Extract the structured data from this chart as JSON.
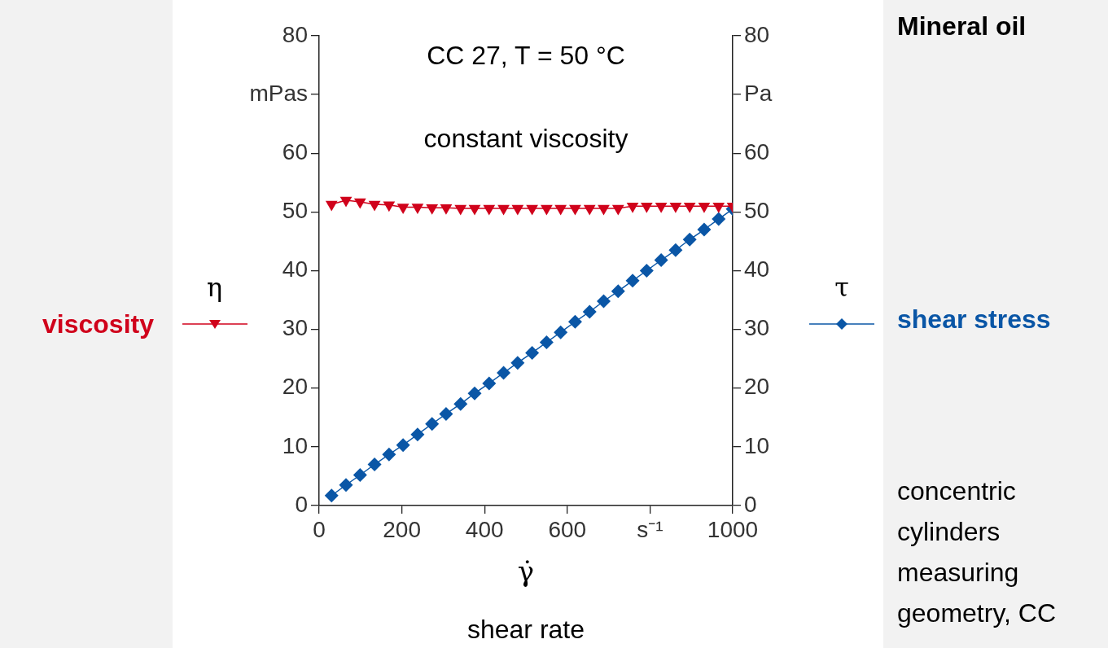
{
  "chart_data": {
    "type": "line",
    "title": "Mineral oil",
    "xlabel": "γ̇\nshear rate",
    "ylabel": "η",
    "y2label": "τ",
    "annotations": [
      "CC 27, T = 50 °C",
      "constant viscosity",
      "concentric cylinders measuring geometry, CC"
    ],
    "x": [
      30,
      65,
      99,
      134,
      169,
      203,
      238,
      273,
      307,
      342,
      376,
      411,
      446,
      480,
      515,
      550,
      584,
      619,
      654,
      688,
      723,
      758,
      792,
      827,
      862,
      896,
      931,
      966,
      1000
    ],
    "series": [
      {
        "name": "viscosity",
        "color": "#d0021b",
        "marker": "triangle",
        "axis": "y",
        "values": [
          51.3,
          52.0,
          51.7,
          51.3,
          51.2,
          50.8,
          50.8,
          50.7,
          50.7,
          50.6,
          50.6,
          50.6,
          50.6,
          50.6,
          50.6,
          50.6,
          50.6,
          50.6,
          50.6,
          50.6,
          50.6,
          51.0,
          51.0,
          51.0,
          51.0,
          51.0,
          51.0,
          51.0,
          51.0
        ]
      },
      {
        "name": "shear stress",
        "color": "#0a56a6",
        "marker": "diamond",
        "axis": "y2",
        "values": [
          1.7,
          3.5,
          5.2,
          7.0,
          8.7,
          10.3,
          12.1,
          13.9,
          15.6,
          17.3,
          19.1,
          20.8,
          22.6,
          24.3,
          26.0,
          27.8,
          29.5,
          31.3,
          33.0,
          34.8,
          36.5,
          38.3,
          40.0,
          41.8,
          43.5,
          45.3,
          47.0,
          48.8,
          50.5
        ]
      }
    ],
    "xlim": [
      0,
      1000
    ],
    "xticks": [
      0,
      200,
      400,
      600,
      {
        "value": 800,
        "label": "s⁻¹"
      },
      1000
    ],
    "ylim": [
      0,
      80
    ],
    "yticks": [
      0,
      10,
      20,
      30,
      40,
      50,
      60,
      {
        "value": 70,
        "label": "mPas"
      },
      80
    ],
    "y2lim": [
      0,
      80
    ],
    "y2ticks": [
      0,
      10,
      20,
      30,
      40,
      50,
      60,
      {
        "value": 70,
        "label": "Pa"
      },
      80
    ],
    "grid": false,
    "legend": "right"
  }
}
